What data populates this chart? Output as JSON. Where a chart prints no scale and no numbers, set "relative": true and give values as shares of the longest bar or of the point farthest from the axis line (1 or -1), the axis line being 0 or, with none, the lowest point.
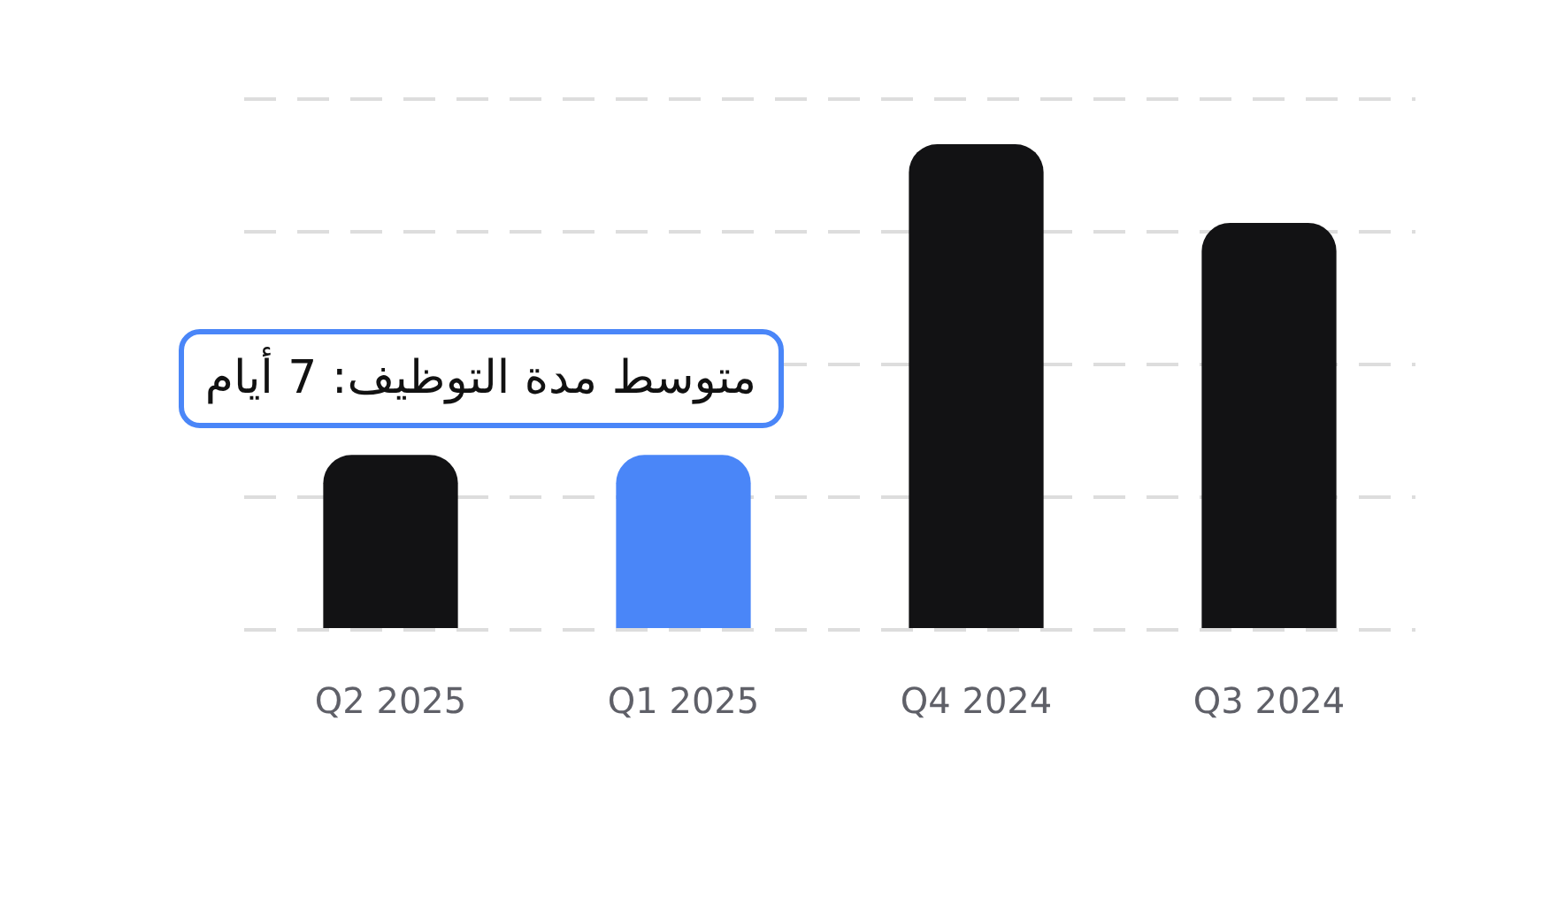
{
  "chart_data": {
    "type": "bar",
    "relative": true,
    "categories": [
      "Q2 2025",
      "Q1 2025",
      "Q4 2024",
      "Q3 2024"
    ],
    "values": [
      0.36,
      0.36,
      1,
      0.838
    ],
    "colors": [
      "#121214",
      "#4a86f8",
      "#121214",
      "#121214"
    ],
    "grid": "y",
    "annotations": [
      "متوسط مدة التوظيف: 7 أيام"
    ]
  }
}
